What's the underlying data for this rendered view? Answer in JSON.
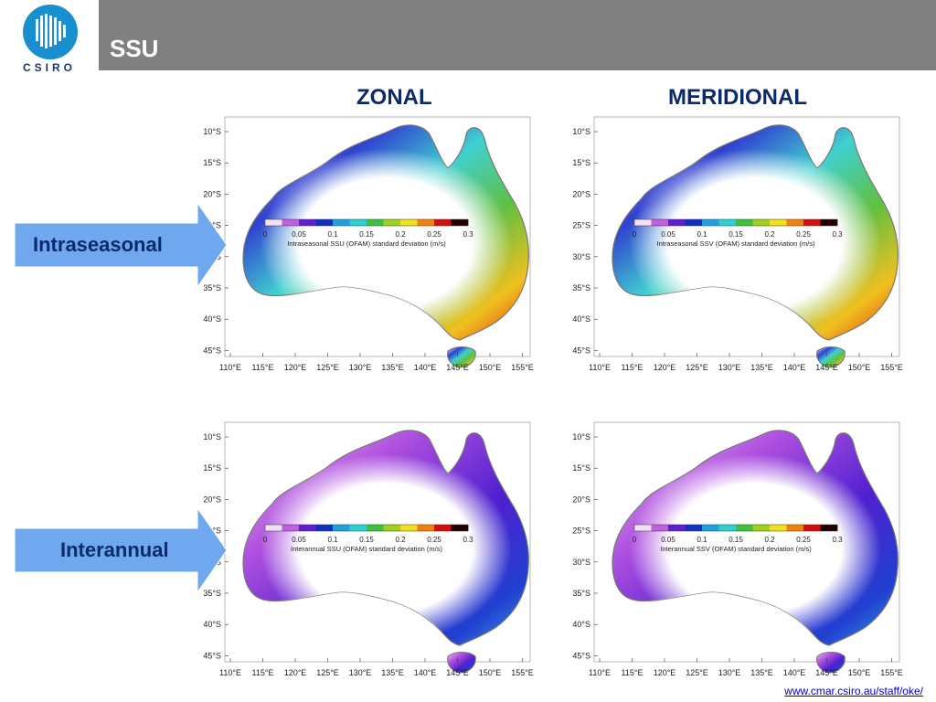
{
  "header": {
    "title": "SSU",
    "logo_text": "CSIRO"
  },
  "columns": {
    "zonal": "ZONAL",
    "meridional": "MERIDIONAL"
  },
  "rows": {
    "intraseasonal": "Intraseasonal",
    "interannual": "Interannual"
  },
  "axes": {
    "lat_ticks": [
      "10°S",
      "15°S",
      "20°S",
      "25°S",
      "30°S",
      "35°S",
      "40°S",
      "45°S"
    ],
    "lon_ticks": [
      "110°E",
      "115°E",
      "120°E",
      "125°E",
      "130°E",
      "135°E",
      "140°E",
      "145°E",
      "150°E",
      "155°E"
    ]
  },
  "colorbar": {
    "ticks": [
      "0",
      "0.05",
      "0.1",
      "0.15",
      "0.2",
      "0.25",
      "0.3"
    ],
    "colors": [
      "#f0e0f8",
      "#c060e0",
      "#6020d0",
      "#1030c0",
      "#20a0e0",
      "#30d0d0",
      "#40c040",
      "#a0d020",
      "#f0e020",
      "#f08010",
      "#d01010",
      "#200000"
    ]
  },
  "maps": [
    {
      "id": "intra-zonal",
      "caption": "Intraseasonal SSU (OFAM) standard deviation (m/s)",
      "palette": "intra"
    },
    {
      "id": "intra-meridional",
      "caption": "Intraseasonal SSV (OFAM) standard deviation (m/s)",
      "palette": "intra"
    },
    {
      "id": "inter-zonal",
      "caption": "Interannual SSU (OFAM) standard deviation (m/s)",
      "palette": "inter"
    },
    {
      "id": "inter-meridional",
      "caption": "Interannual SSV (OFAM) standard deviation (m/s)",
      "palette": "inter"
    }
  ],
  "footer": {
    "link": "www.cmar.csiro.au/staff/oke/"
  }
}
